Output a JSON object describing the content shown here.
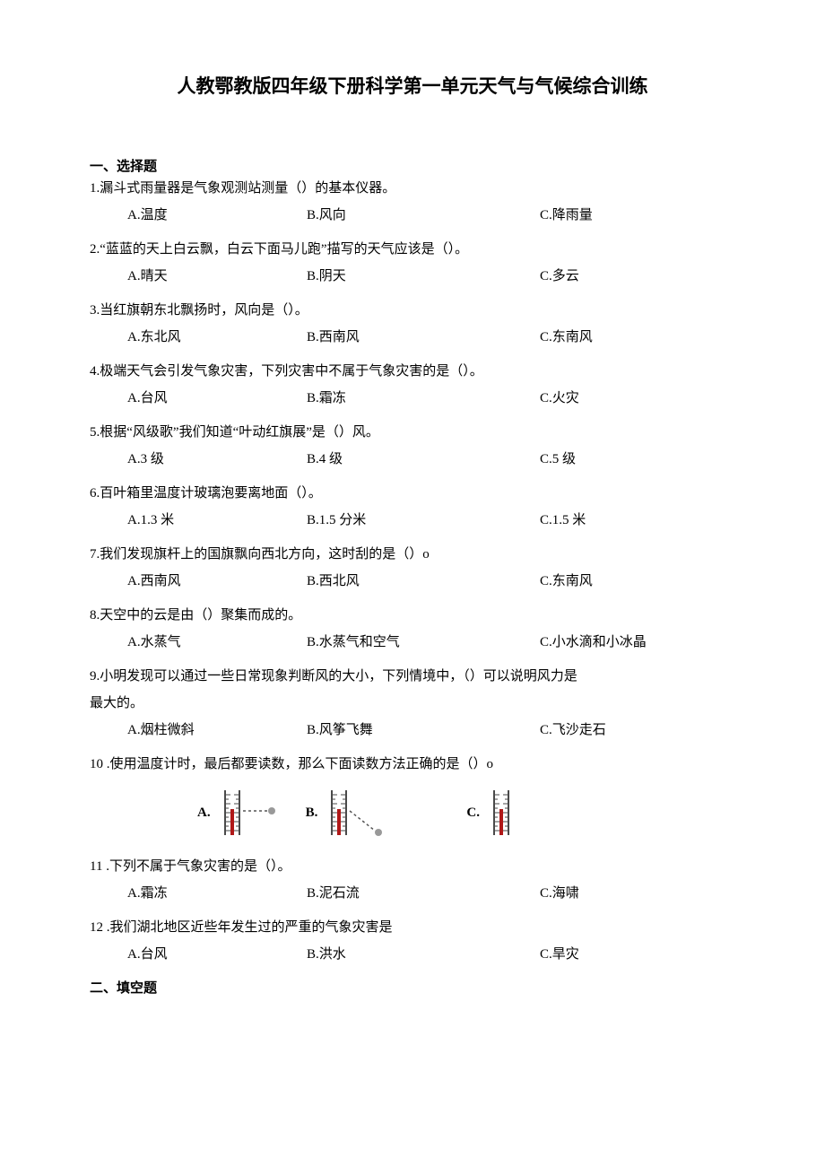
{
  "title": "人教鄂教版四年级下册科学第一单元天气与气候综合训练",
  "section1": {
    "heading": "一、选择题",
    "questions": [
      {
        "num": "1",
        "text": ".漏斗式雨量器是气象观测站测量（）的基本仪器。",
        "a": "A.温度",
        "b": "B.风向",
        "c": "C.降雨量"
      },
      {
        "num": "2",
        "text": ".“蓝蓝的天上白云飘，白云下面马儿跑”描写的天气应该是（）。",
        "a": "A.晴天",
        "b": "B.阴天",
        "c": "C.多云"
      },
      {
        "num": "3",
        "text": ".当红旗朝东北飘扬时，风向是（）。",
        "a": "A.东北风",
        "b": "B.西南风",
        "c": "C.东南风"
      },
      {
        "num": "4",
        "text": ".极端天气会引发气象灾害，下列灾害中不属于气象灾害的是（）。",
        "a": "A.台风",
        "b": "B.霜冻",
        "c": "C.火灾"
      },
      {
        "num": "5",
        "text": ".根据“风级歌”我们知道“叶动红旗展”是（）风。",
        "a": "A.3 级",
        "b": "B.4 级",
        "c": "C.5 级"
      },
      {
        "num": "6",
        "text": ".百叶箱里温度计玻璃泡要离地面（）。",
        "a": "A.1.3 米",
        "b": "B.1.5 分米",
        "c": "C.1.5 米"
      },
      {
        "num": "7",
        "text": ".我们发现旗杆上的国旗飘向西北方向，这时刮的是（）o",
        "a": "A.西南风",
        "b": "B.西北风",
        "c": "C.东南风"
      },
      {
        "num": "8",
        "text": ".天空中的云是由（）聚集而成的。",
        "a": "A.水蒸气",
        "b": "B.水蒸气和空气",
        "c": "C.小水滴和小冰晶"
      },
      {
        "num": "9",
        "text": ".小明发现可以通过一些日常现象判断风的大小，下列情境中，（）可以说明风力是",
        "text2": "最大的。",
        "a": "A.烟柱微斜",
        "b": "B.风筝飞舞",
        "c": "C.飞沙走石"
      },
      {
        "num": "10",
        "text": "  .使用温度计时，最后都要读数，那么下面读数方法正确的是（）o",
        "imageRow": true,
        "labelA": "A.",
        "labelB": "B.",
        "labelC": "C."
      },
      {
        "num": "11",
        "text": "  .下列不属于气象灾害的是（）。",
        "a": "A.霜冻",
        "b": "B.泥石流",
        "c": "C.海啸"
      },
      {
        "num": "12",
        "text": "  .我们湖北地区近些年发生过的严重的气象灾害是",
        "a": "A.台风",
        "b": "B.洪水",
        "c": "C.旱灾"
      }
    ]
  },
  "section2": {
    "heading": "二、填空题"
  },
  "thermometerStyle": {
    "tubeColor": "#b01818",
    "scaleColor": "#4a4a4a",
    "eyeColor": "#555555",
    "width": 70,
    "height": 60
  }
}
